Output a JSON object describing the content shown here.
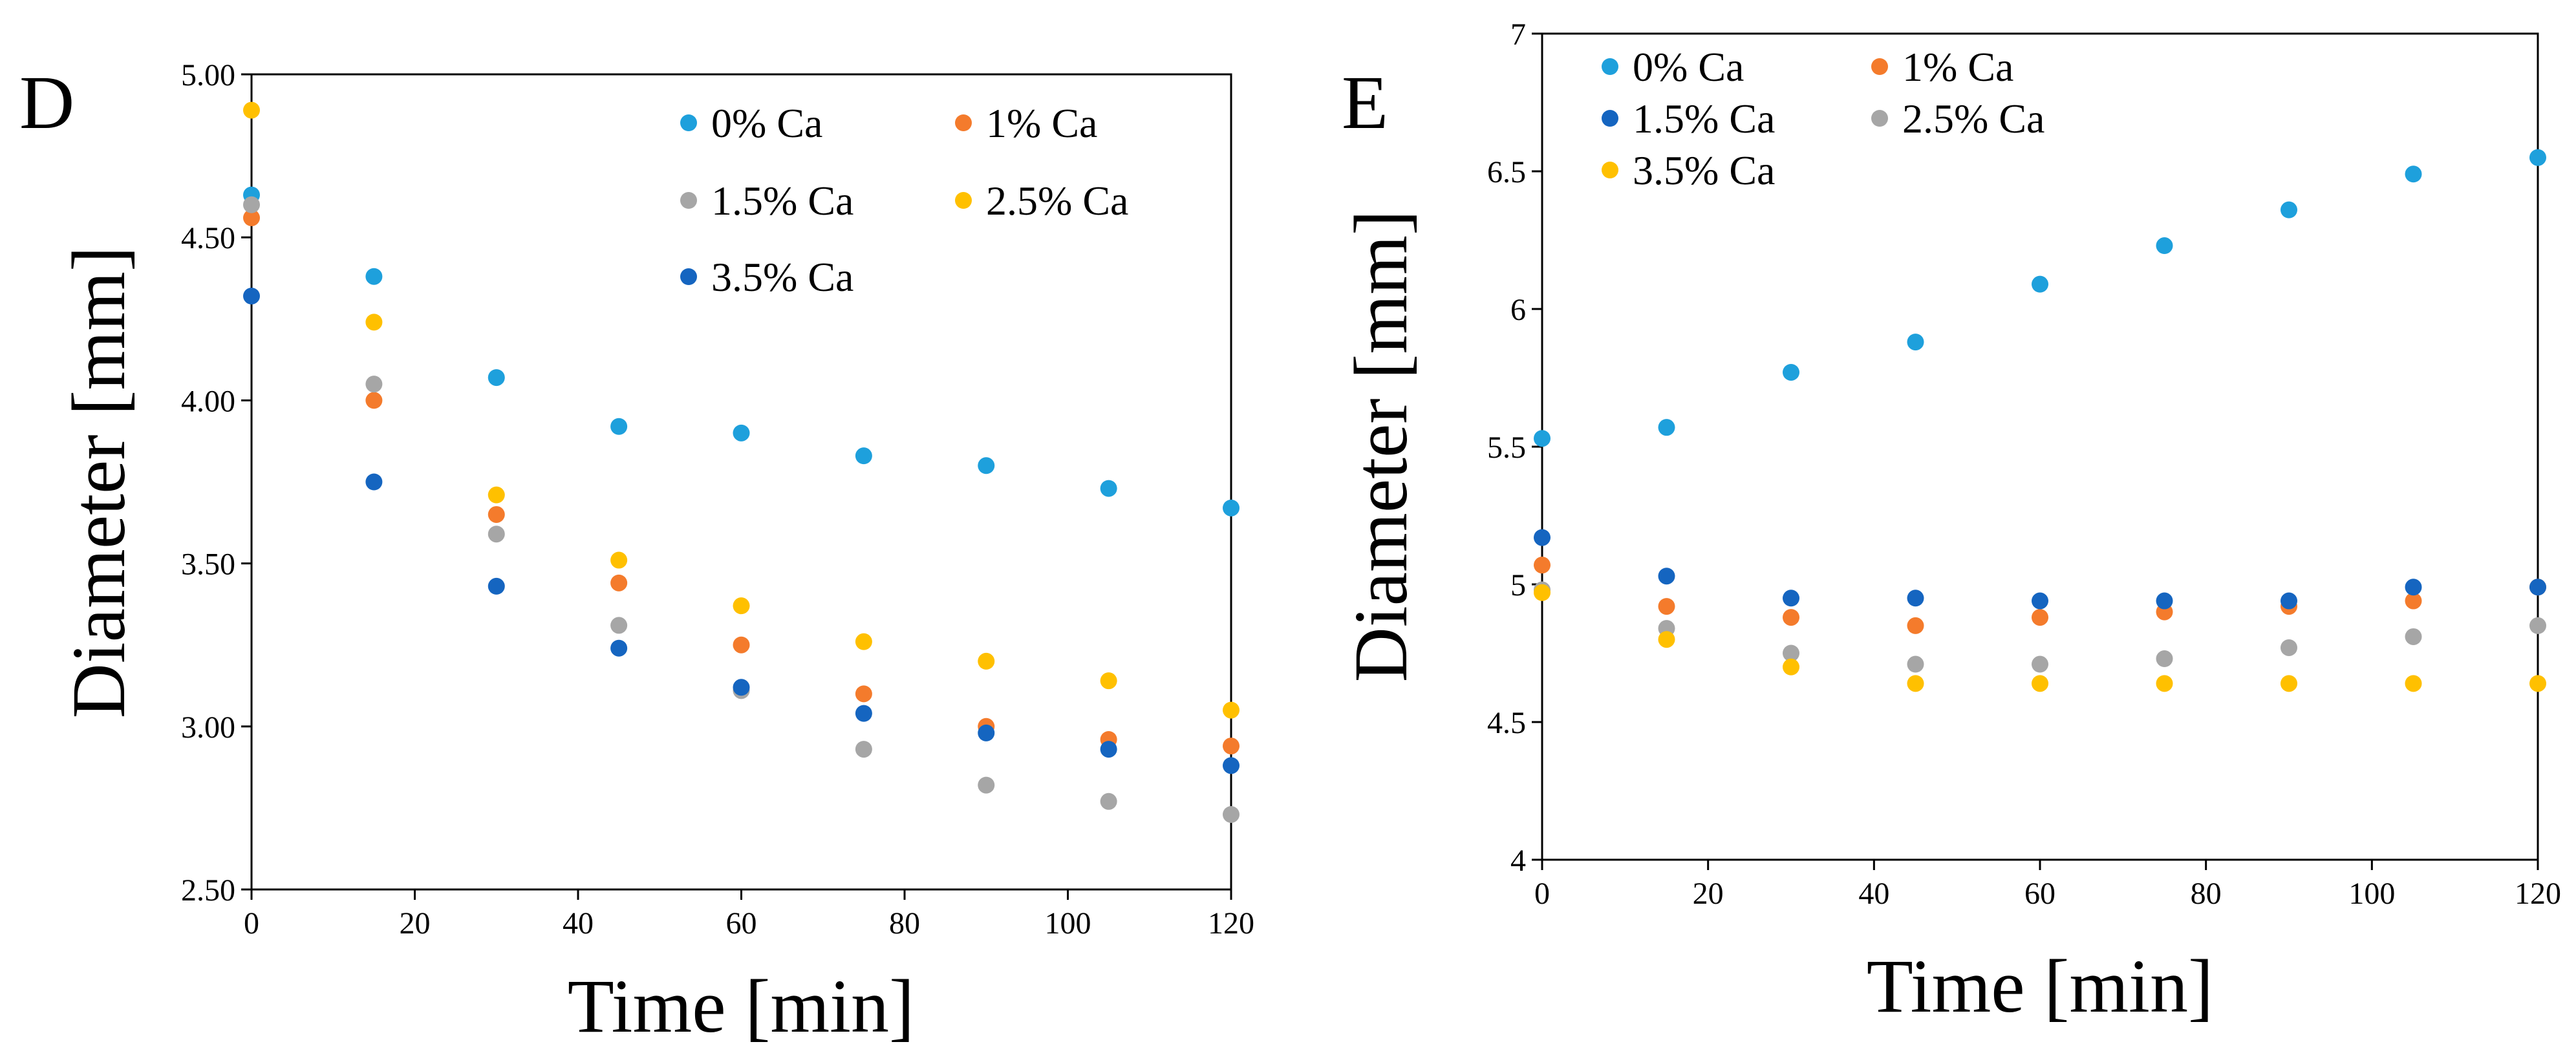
{
  "chart_data": [
    {
      "type": "scatter",
      "panel_label": "D",
      "title": "",
      "xlabel": "Time [min]",
      "ylabel": "Diameter [mm]",
      "xlim": [
        0,
        120
      ],
      "ylim": [
        2.5,
        5.0
      ],
      "x_ticks": [
        0,
        20,
        40,
        60,
        80,
        100,
        120
      ],
      "x_tick_labels": [
        "0",
        "20",
        "40",
        "60",
        "80",
        "100",
        "120"
      ],
      "y_ticks": [
        2.5,
        3.0,
        3.5,
        4.0,
        4.5,
        5.0
      ],
      "y_tick_labels": [
        "2.50",
        "3.00",
        "3.50",
        "4.00",
        "4.50",
        "5.00"
      ],
      "grid": false,
      "legend_position": "top-right",
      "legend_columns": 2,
      "x": [
        0,
        15,
        30,
        45,
        60,
        75,
        90,
        105,
        120
      ],
      "series": [
        {
          "name": "0% Ca",
          "color": "#1EA0DC",
          "values": [
            4.63,
            4.38,
            4.07,
            3.92,
            3.9,
            3.83,
            3.8,
            3.73,
            3.67
          ]
        },
        {
          "name": "1% Ca",
          "color": "#F47B2C",
          "values": [
            4.56,
            4.0,
            3.65,
            3.44,
            3.25,
            3.1,
            3.0,
            2.96,
            2.94
          ]
        },
        {
          "name": "1.5% Ca",
          "color": "#A6A6A6",
          "values": [
            4.6,
            4.05,
            3.59,
            3.31,
            3.11,
            2.93,
            2.82,
            2.77,
            2.73
          ]
        },
        {
          "name": "2.5% Ca",
          "color": "#FFC000",
          "values": [
            4.89,
            4.24,
            3.71,
            3.51,
            3.37,
            3.26,
            3.2,
            3.14,
            3.05
          ]
        },
        {
          "name": "3.5% Ca",
          "color": "#1565C0",
          "values": [
            4.32,
            3.75,
            3.43,
            3.24,
            3.12,
            3.04,
            2.98,
            2.93,
            2.88
          ]
        }
      ]
    },
    {
      "type": "scatter",
      "panel_label": "E",
      "title": "",
      "xlabel": "Time [min]",
      "ylabel": "Diameter [mm]",
      "xlim": [
        0,
        120
      ],
      "ylim": [
        4,
        7
      ],
      "x_ticks": [
        0,
        20,
        40,
        60,
        80,
        100,
        120
      ],
      "x_tick_labels": [
        "0",
        "20",
        "40",
        "60",
        "80",
        "100",
        "120"
      ],
      "y_ticks": [
        4,
        4.5,
        5,
        5.5,
        6,
        6.5,
        7
      ],
      "y_tick_labels": [
        "4",
        "4.5",
        "5",
        "5.5",
        "6",
        "6.5",
        "7"
      ],
      "grid": false,
      "legend_position": "top-left",
      "legend_columns": 2,
      "x": [
        0,
        15,
        30,
        45,
        60,
        75,
        90,
        105,
        120
      ],
      "series": [
        {
          "name": "0% Ca",
          "color": "#1EA0DC",
          "values": [
            5.53,
            5.57,
            5.77,
            5.88,
            6.09,
            6.23,
            6.36,
            6.49,
            6.55
          ]
        },
        {
          "name": "1% Ca",
          "color": "#F47B2C",
          "values": [
            5.07,
            4.92,
            4.88,
            4.85,
            4.88,
            4.9,
            4.92,
            4.94,
            4.99
          ]
        },
        {
          "name": "1.5% Ca",
          "color": "#1565C0",
          "values": [
            5.17,
            5.03,
            4.95,
            4.95,
            4.94,
            4.94,
            4.94,
            4.99,
            4.99
          ]
        },
        {
          "name": "2.5% Ca",
          "color": "#A6A6A6",
          "values": [
            4.98,
            4.84,
            4.75,
            4.71,
            4.71,
            4.73,
            4.77,
            4.81,
            4.85
          ]
        },
        {
          "name": "3.5% Ca",
          "color": "#FFC000",
          "values": [
            4.97,
            4.8,
            4.7,
            4.64,
            4.64,
            4.64,
            4.64,
            4.64,
            4.64
          ]
        }
      ]
    }
  ]
}
